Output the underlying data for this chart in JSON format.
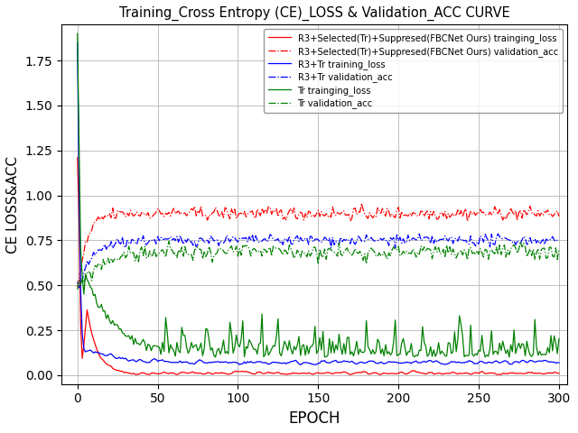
{
  "title": "Training_Cross Entropy (CE)_LOSS & Validation_ACC CURVE",
  "xlabel": "EPOCH",
  "ylabel": "CE LOSS&ACC",
  "xlim": [
    -10,
    305
  ],
  "ylim": [
    -0.05,
    1.95
  ],
  "yticks": [
    0.0,
    0.25,
    0.5,
    0.75,
    1.0,
    1.25,
    1.5,
    1.75
  ],
  "xticks": [
    0,
    50,
    100,
    150,
    200,
    250,
    300
  ],
  "n_epochs": 301,
  "legend_entries": [
    "R3+Selected(Tr)+Suppresed(FBCNet Ours) trainging_loss",
    "R3+Selected(Tr)+Suppresed(FBCNet Ours) validation_acc",
    "R3+Tr training_loss",
    "R3+Tr validation_acc",
    "Tr trainging_loss",
    "Tr validation_acc"
  ],
  "colors": {
    "red": "#ff0000",
    "blue": "#0000ff",
    "green": "#008000"
  },
  "seed": 42,
  "background_color": "#ffffff",
  "grid_color": "#b0b0b0"
}
